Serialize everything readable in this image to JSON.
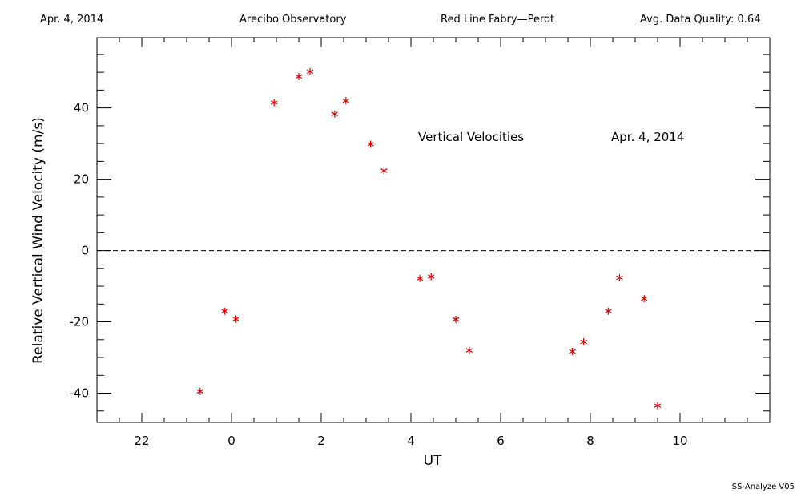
{
  "header": {
    "date": "Apr. 4, 2014",
    "observatory": "Arecibo Observatory",
    "instrument": "Red Line Fabry—Perot",
    "quality": "Avg. Data Quality: 0.64"
  },
  "footer": {
    "version": "SS-Analyze V05"
  },
  "chart_data": {
    "type": "scatter",
    "xlabel": "UT",
    "ylabel": "Relative Vertical Wind Velocity (m/s)",
    "x_ticks": [
      22,
      0,
      2,
      4,
      6,
      8,
      10
    ],
    "y_ticks": [
      -40,
      -20,
      0,
      20,
      40
    ],
    "annotations": [
      {
        "text": "Vertical Velocities"
      },
      {
        "text": "Apr. 4, 2014"
      }
    ],
    "reference_line": {
      "y": 0,
      "style": "dashed"
    },
    "marker": {
      "symbol": "asterisk",
      "color": "#e00000"
    },
    "series": [
      {
        "points": [
          {
            "x": -0.7,
            "y": -39.5
          },
          {
            "x": -0.15,
            "y": -17
          },
          {
            "x": 0.1,
            "y": -19.2
          },
          {
            "x": 0.95,
            "y": 41.5
          },
          {
            "x": 1.5,
            "y": 48.8
          },
          {
            "x": 1.75,
            "y": 50.2
          },
          {
            "x": 2.3,
            "y": 38.3
          },
          {
            "x": 2.55,
            "y": 42
          },
          {
            "x": 3.1,
            "y": 29.8
          },
          {
            "x": 3.4,
            "y": 22.4
          },
          {
            "x": 4.2,
            "y": -7.8
          },
          {
            "x": 4.45,
            "y": -7.3
          },
          {
            "x": 5.0,
            "y": -19.3
          },
          {
            "x": 5.3,
            "y": -28
          },
          {
            "x": 7.6,
            "y": -28.3
          },
          {
            "x": 7.85,
            "y": -25.6
          },
          {
            "x": 8.4,
            "y": -17
          },
          {
            "x": 8.65,
            "y": -7.6
          },
          {
            "x": 9.2,
            "y": -13.5
          },
          {
            "x": 9.5,
            "y": -43.5
          }
        ]
      }
    ]
  }
}
